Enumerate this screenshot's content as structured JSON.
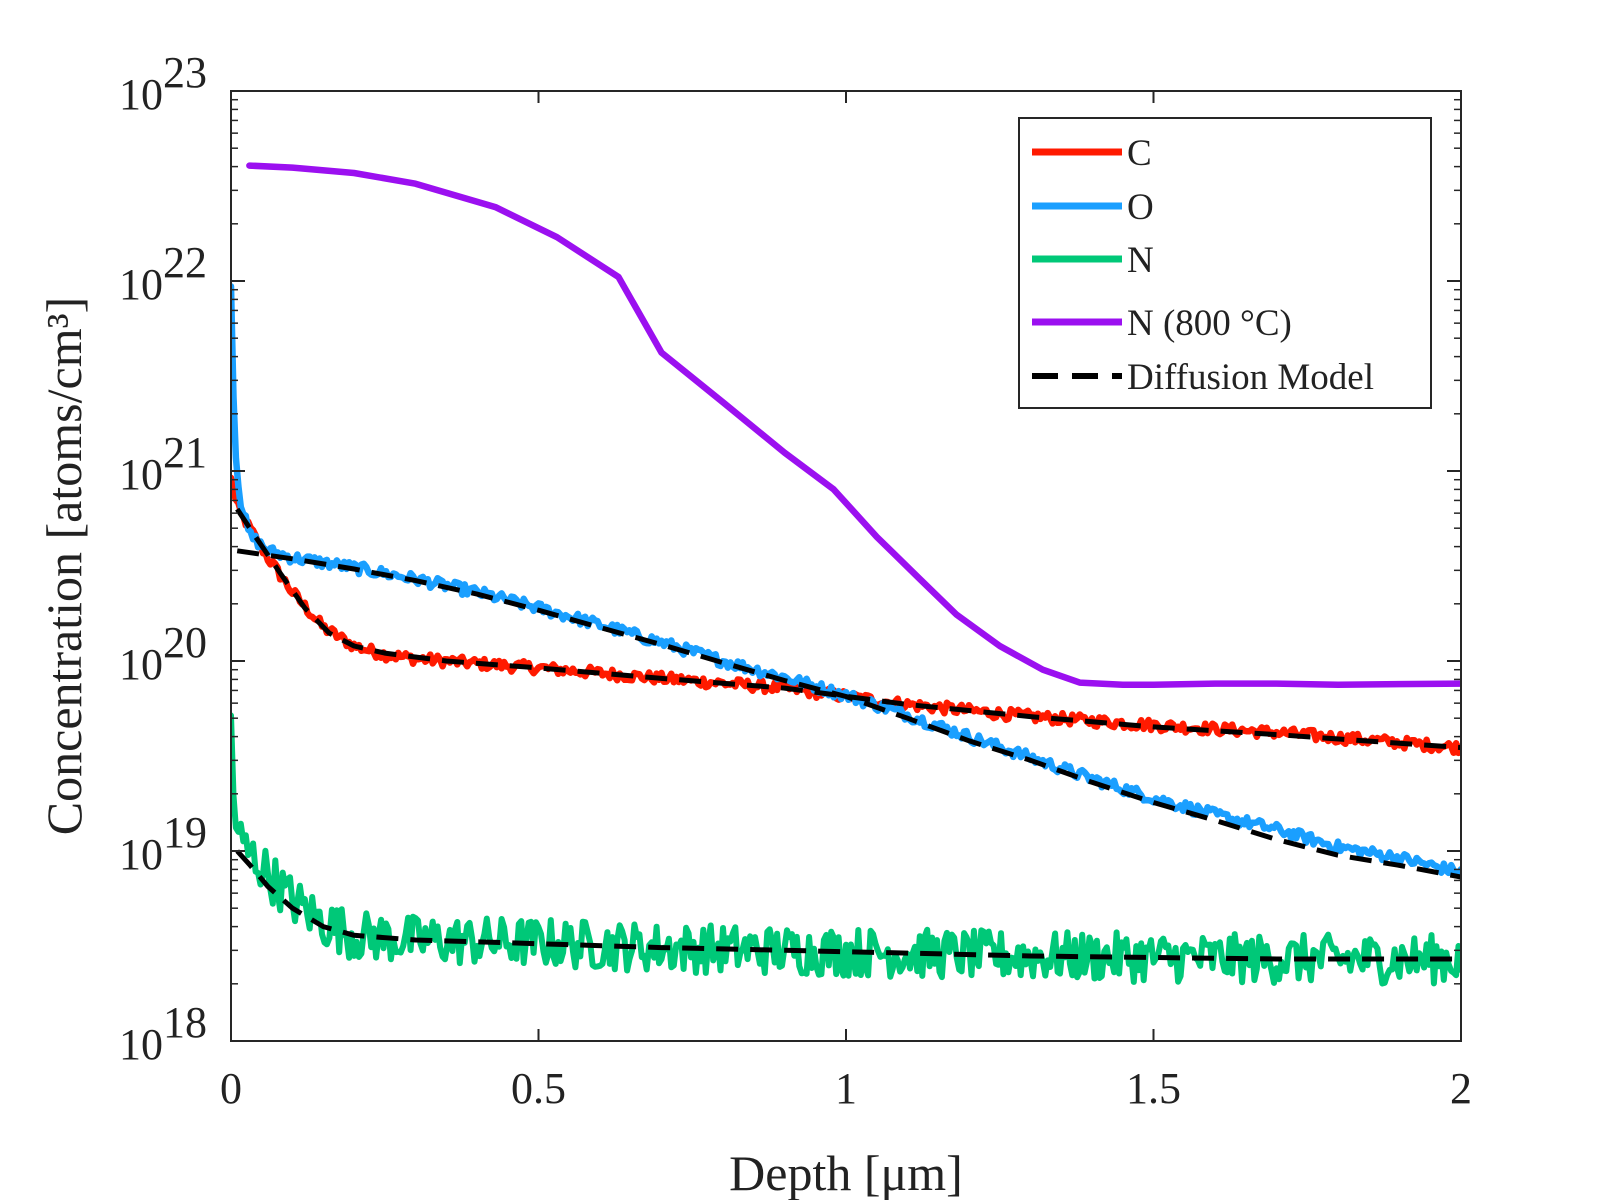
{
  "chart_data": {
    "type": "line",
    "xlabel": "Depth [μm]",
    "ylabel": "Concentration [atoms/cm³]",
    "xlim": [
      0,
      2
    ],
    "ylim": [
      1e+18,
      1e+23
    ],
    "yscale": "log",
    "grid": false,
    "legend_position": "top-right",
    "x_ticks": [
      "0",
      "0.5",
      "1",
      "1.5",
      "2"
    ],
    "y_tick_base": "10",
    "y_tick_exponents": [
      "18",
      "19",
      "20",
      "21",
      "22",
      "23"
    ],
    "legend": {
      "c": "C",
      "o": "O",
      "n": "N",
      "n800": "N (800 °C)",
      "model": "Diffusion Model"
    },
    "series": [
      {
        "name": "C",
        "color": "#ff1a00",
        "noise": 0.03,
        "x": [
          0,
          0.01,
          0.03,
          0.06,
          0.1,
          0.15,
          0.2,
          0.25,
          0.3,
          0.4,
          0.5,
          0.7,
          0.9,
          1.1,
          1.3,
          1.5,
          1.7,
          2.0
        ],
        "y": [
          9e+20,
          6.5e+20,
          5e+20,
          3.5e+20,
          2.3e+20,
          1.5e+20,
          1.2e+20,
          1.08e+20,
          1.03e+20,
          9.7e+19,
          9.2e+19,
          8.1e+19,
          7.2e+19,
          5.9e+19,
          5.1e+19,
          4.6e+19,
          4.2e+19,
          3.5e+19
        ]
      },
      {
        "name": "O",
        "color": "#1a9fff",
        "noise": 0.03,
        "x": [
          0,
          0.003,
          0.008,
          0.015,
          0.03,
          0.06,
          0.1,
          0.2,
          0.3,
          0.4,
          0.5,
          0.6,
          0.7,
          0.8,
          0.9,
          1.0,
          1.1,
          1.2,
          1.3,
          1.4,
          1.5,
          1.6,
          1.7,
          1.8,
          1.9,
          2.0
        ],
        "y": [
          1e+22,
          3e+21,
          1.2e+21,
          7e+20,
          4.6e+20,
          3.8e+20,
          3.5e+20,
          3.1e+20,
          2.7e+20,
          2.3e+20,
          1.9e+20,
          1.55e+20,
          1.25e+20,
          1e+20,
          8.2e+19,
          6.6e+19,
          5.2e+19,
          4e+19,
          3.1e+19,
          2.4e+19,
          1.9e+19,
          1.55e+19,
          1.3e+19,
          1.05e+19,
          9.2e+18,
          7.7e+18
        ]
      },
      {
        "name": "N",
        "color": "#00c878",
        "noise": 0.13,
        "x": [
          0,
          0.003,
          0.01,
          0.02,
          0.04,
          0.07,
          0.1,
          0.15,
          0.2,
          0.3,
          0.5,
          0.7,
          0.9,
          1.1,
          1.3,
          1.5,
          1.7,
          2.0
        ],
        "y": [
          5e+19,
          2e+19,
          1.3e+19,
          1.05e+19,
          9e+18,
          7e+18,
          5.5e+18,
          4.2e+18,
          3.6e+18,
          3.4e+18,
          3.3e+18,
          3.1e+18,
          3e+18,
          2.9e+18,
          2.8e+18,
          2.75e+18,
          2.7e+18,
          2.7e+18
        ]
      },
      {
        "name": "N (800 °C)",
        "color": "#9b10f0",
        "noise": 0,
        "x": [
          0.03,
          0.1,
          0.2,
          0.3,
          0.43,
          0.53,
          0.63,
          0.7,
          0.8,
          0.9,
          0.98,
          1.05,
          1.12,
          1.18,
          1.25,
          1.32,
          1.38,
          1.45,
          1.5,
          1.6,
          1.7,
          1.8,
          2.0
        ],
        "y": [
          4.05e+22,
          3.95e+22,
          3.7e+22,
          3.25e+22,
          2.45e+22,
          1.7e+22,
          1.05e+22,
          4.2e+21,
          2.3e+21,
          1.25e+21,
          8e+20,
          4.5e+20,
          2.7e+20,
          1.75e+20,
          1.2e+20,
          9e+19,
          7.7e+19,
          7.5e+19,
          7.5e+19,
          7.6e+19,
          7.6e+19,
          7.5e+19,
          7.6e+19
        ]
      }
    ],
    "model_curves": [
      {
        "name": "Diffusion Model",
        "color": "#000000",
        "x": [
          0.01,
          0.04,
          0.08,
          0.12,
          0.16,
          0.2,
          0.25,
          0.35,
          0.5,
          0.7,
          0.9,
          1.1,
          1.3,
          1.5,
          1.7,
          2.0
        ],
        "y": [
          6.3e+20,
          4.5e+20,
          2.9e+20,
          1.9e+20,
          1.4e+20,
          1.2e+20,
          1.1e+20,
          1e+20,
          9.2e+19,
          8.1e+19,
          7.2e+19,
          5.9e+19,
          5.1e+19,
          4.5e+19,
          4.1e+19,
          3.5e+19
        ]
      },
      {
        "name": "Diffusion Model",
        "color": "#000000",
        "x": [
          0.01,
          0.1,
          0.2,
          0.3,
          0.4,
          0.5,
          0.6,
          0.7,
          0.8,
          0.9,
          1.0,
          1.1,
          1.2,
          1.3,
          1.4,
          1.5,
          1.6,
          1.7,
          1.8,
          1.9,
          2.0
        ],
        "y": [
          3.8e+20,
          3.45e+20,
          3.05e+20,
          2.65e+20,
          2.25e+20,
          1.85e+20,
          1.5e+20,
          1.22e+20,
          9.8e+19,
          7.9e+19,
          6.5e+19,
          5e+19,
          3.8e+19,
          3e+19,
          2.3e+19,
          1.8e+19,
          1.45e+19,
          1.15e+19,
          9.5e+18,
          8.4e+18,
          7.3e+18
        ]
      },
      {
        "name": "Diffusion Model",
        "color": "#000000",
        "x": [
          0.01,
          0.03,
          0.06,
          0.1,
          0.15,
          0.2,
          0.3,
          0.5,
          0.7,
          0.9,
          1.1,
          1.3,
          1.5,
          1.7,
          2.0
        ],
        "y": [
          1e+19,
          8.5e+18,
          6.5e+18,
          5e+18,
          4e+18,
          3.6e+18,
          3.4e+18,
          3.25e+18,
          3.1e+18,
          3e+18,
          2.9e+18,
          2.8e+18,
          2.75e+18,
          2.7e+18,
          2.7e+18
        ]
      }
    ]
  }
}
